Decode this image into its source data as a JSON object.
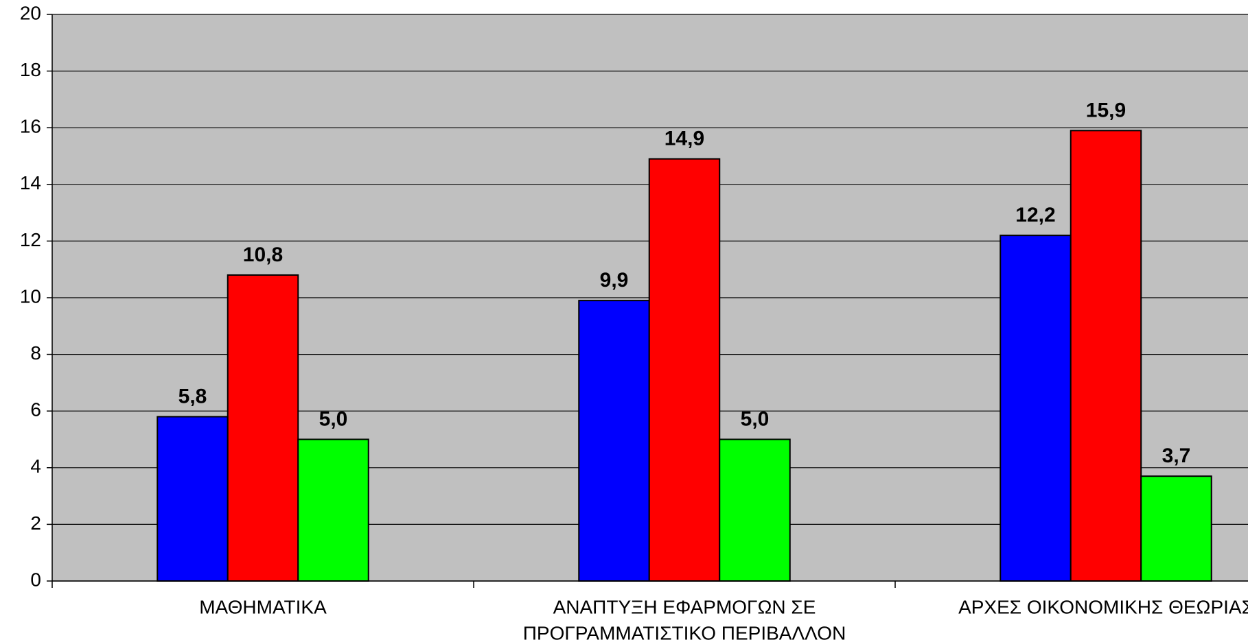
{
  "chart_data": {
    "type": "bar",
    "categories": [
      [
        "ΜΑΘΗΜΑΤΙΚΑ"
      ],
      [
        "ΑΝΑΠΤΥΞΗ ΕΦΑΡΜΟΓΩΝ  ΣΕ",
        "ΠΡΟΓΡΑΜΜΑΤΙΣΤΙΚΟ ΠΕΡΙΒΑΛΛΟΝ"
      ],
      [
        "ΑΡΧΕΣ ΟΙΚΟΝΟΜΙΚΗΣ ΘΕΩΡΙΑΣ"
      ]
    ],
    "series": [
      {
        "color": "#0000ff",
        "values": [
          5.8,
          9.9,
          12.2
        ],
        "value_labels": [
          "5,8",
          "9,9",
          "12,2"
        ]
      },
      {
        "color": "#ff0000",
        "values": [
          10.8,
          14.9,
          15.9
        ],
        "value_labels": [
          "10,8",
          "14,9",
          "15,9"
        ]
      },
      {
        "color": "#00ff00",
        "values": [
          5.0,
          5.0,
          3.7
        ],
        "value_labels": [
          "5,0",
          "5,0",
          "3,7"
        ]
      }
    ],
    "ylim": [
      0,
      20
    ],
    "yticks": [
      0,
      2,
      4,
      6,
      8,
      10,
      12,
      14,
      16,
      18,
      20
    ],
    "grid": true,
    "plot_background": "#c0c0c0"
  }
}
